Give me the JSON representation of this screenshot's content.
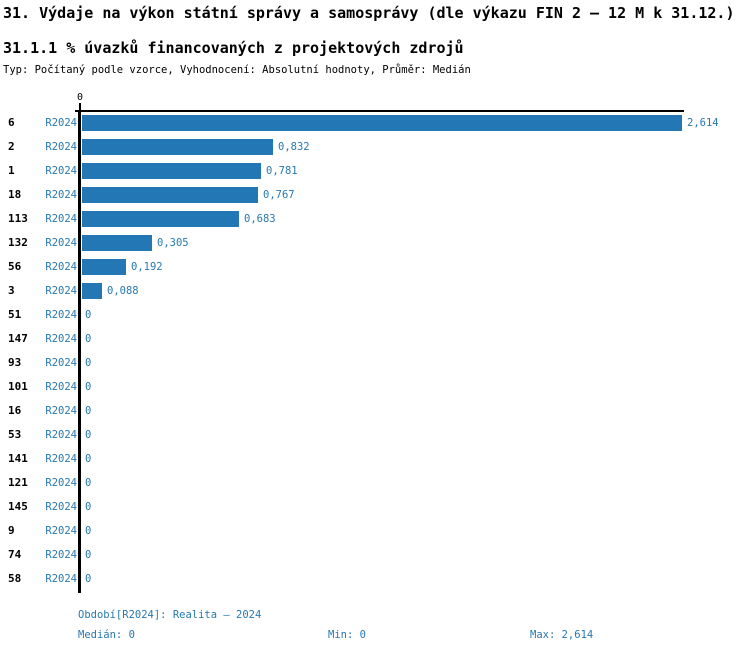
{
  "header": {
    "title": "31. Výdaje na výkon státní správy a samosprávy (dle výkazu FIN 2 – 12 M k 31.12.)",
    "subtitle": "31.1.1 % úvazků financovaných z projektových zdrojů",
    "meta": "Typ: Počítaný podle vzorce, Vyhodnocení: Absolutní hodnoty, Průměr: Medián"
  },
  "colors": {
    "bar": "#2377b4",
    "blue_text": "#2878b0",
    "axis": "#000000"
  },
  "chart_data": {
    "type": "bar",
    "orientation": "horizontal",
    "title": "31.1.1 % úvazků financovaných z projektových zdrojů",
    "series_label": "R2024",
    "categories": [
      "6",
      "2",
      "1",
      "18",
      "113",
      "132",
      "56",
      "3",
      "51",
      "147",
      "93",
      "101",
      "16",
      "53",
      "141",
      "121",
      "145",
      "9",
      "74",
      "58"
    ],
    "values": [
      2.614,
      0.832,
      0.781,
      0.767,
      0.683,
      0.305,
      0.192,
      0.088,
      0,
      0,
      0,
      0,
      0,
      0,
      0,
      0,
      0,
      0,
      0,
      0
    ],
    "value_labels": [
      "2,614",
      "0,832",
      "0,781",
      "0,767",
      "0,683",
      "0,305",
      "0,192",
      "0,088",
      "0",
      "0",
      "0",
      "0",
      "0",
      "0",
      "0",
      "0",
      "0",
      "0",
      "0",
      "0"
    ],
    "xlim": [
      0,
      2.614
    ],
    "axis_tick_labels": [
      "0"
    ],
    "legend_position": "none",
    "grid": false,
    "stats": {
      "median": 0,
      "min": 0,
      "max": 2.614
    }
  },
  "axis": {
    "zero_label": "0"
  },
  "footer": {
    "period": "Období[R2024]: Realita – 2024",
    "median": "Medián: 0",
    "min": "Min: 0",
    "max": "Max: 2,614"
  }
}
